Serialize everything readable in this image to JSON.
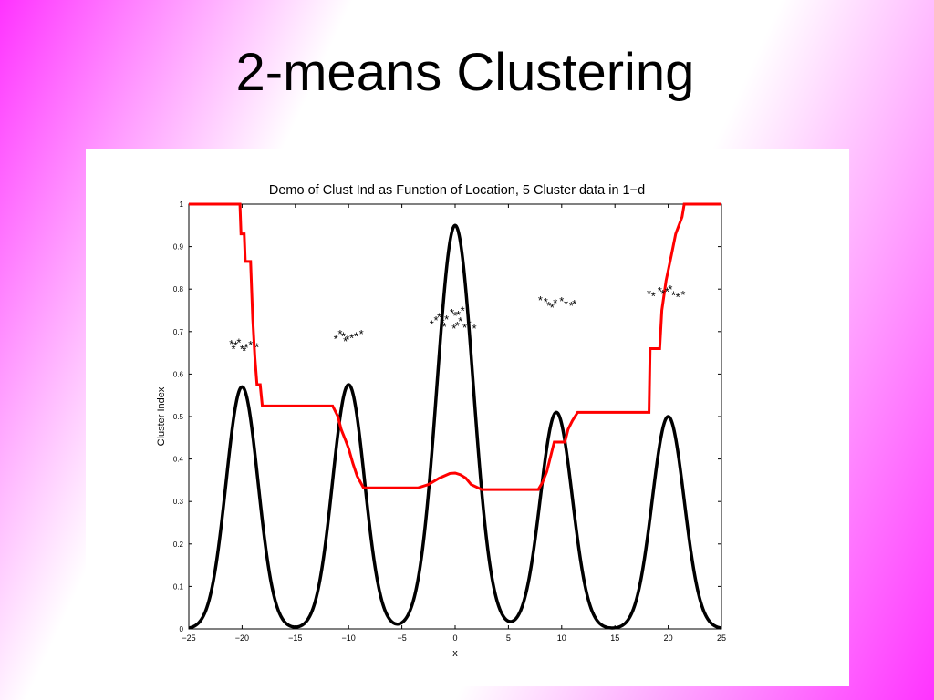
{
  "slide": {
    "title": "2-means Clustering"
  },
  "chart_data": {
    "type": "line",
    "title": "Demo of Clust Ind as Function of Location, 5 Cluster data in 1−d",
    "xlabel": "x",
    "ylabel": "Cluster Index",
    "xlim": [
      -25,
      25
    ],
    "ylim": [
      0,
      1
    ],
    "xticks": [
      -25,
      -20,
      -15,
      -10,
      -5,
      0,
      5,
      10,
      15,
      20,
      25
    ],
    "yticks": [
      0,
      0.1,
      0.2,
      0.3,
      0.4,
      0.5,
      0.6,
      0.7,
      0.8,
      0.9,
      1
    ],
    "grid": false,
    "series": [
      {
        "kind": "density",
        "color": "#000000",
        "components": [
          {
            "mean": -20,
            "sd": 1.5,
            "height": 0.57
          },
          {
            "mean": -10,
            "sd": 1.5,
            "height": 0.575
          },
          {
            "mean": 0,
            "sd": 1.7,
            "height": 0.95
          },
          {
            "mean": 9.5,
            "sd": 1.5,
            "height": 0.51
          },
          {
            "mean": 20,
            "sd": 1.5,
            "height": 0.5
          }
        ]
      },
      {
        "kind": "cluster-index",
        "color": "#ff0000",
        "points": [
          [
            -25,
            1
          ],
          [
            -20.2,
            1
          ],
          [
            -20.1,
            0.93
          ],
          [
            -19.8,
            0.93
          ],
          [
            -19.7,
            0.865
          ],
          [
            -19.2,
            0.865
          ],
          [
            -19.0,
            0.73
          ],
          [
            -18.8,
            0.64
          ],
          [
            -18.6,
            0.575
          ],
          [
            -18.3,
            0.575
          ],
          [
            -18.1,
            0.525
          ],
          [
            -11.5,
            0.525
          ],
          [
            -11.0,
            0.5
          ],
          [
            -10.7,
            0.47
          ],
          [
            -10.3,
            0.445
          ],
          [
            -10.0,
            0.425
          ],
          [
            -9.6,
            0.39
          ],
          [
            -9.2,
            0.36
          ],
          [
            -8.6,
            0.332
          ],
          [
            -3.5,
            0.332
          ],
          [
            -2.5,
            0.34
          ],
          [
            -1.5,
            0.355
          ],
          [
            -0.5,
            0.366
          ],
          [
            0,
            0.367
          ],
          [
            0.5,
            0.363
          ],
          [
            1.0,
            0.355
          ],
          [
            1.5,
            0.34
          ],
          [
            2.5,
            0.328
          ],
          [
            7.8,
            0.328
          ],
          [
            8.2,
            0.345
          ],
          [
            8.6,
            0.37
          ],
          [
            9.0,
            0.41
          ],
          [
            9.3,
            0.44
          ],
          [
            10.3,
            0.44
          ],
          [
            10.6,
            0.47
          ],
          [
            11.0,
            0.49
          ],
          [
            11.5,
            0.51
          ],
          [
            18.2,
            0.51
          ],
          [
            18.3,
            0.66
          ],
          [
            19.2,
            0.66
          ],
          [
            19.4,
            0.75
          ],
          [
            19.8,
            0.82
          ],
          [
            20.3,
            0.88
          ],
          [
            20.7,
            0.93
          ],
          [
            21.3,
            0.97
          ],
          [
            21.5,
            1
          ],
          [
            25,
            1
          ]
        ]
      },
      {
        "kind": "data-points",
        "marker": "*",
        "color": "#000000",
        "points": [
          [
            -21.0,
            0.672
          ],
          [
            -20.6,
            0.668
          ],
          [
            -20.3,
            0.675
          ],
          [
            -20.0,
            0.66
          ],
          [
            -19.6,
            0.663
          ],
          [
            -19.2,
            0.67
          ],
          [
            -18.6,
            0.664
          ],
          [
            -20.8,
            0.66
          ],
          [
            -19.8,
            0.656
          ],
          [
            -11.2,
            0.684
          ],
          [
            -10.8,
            0.695
          ],
          [
            -10.5,
            0.69
          ],
          [
            -10.1,
            0.682
          ],
          [
            -9.7,
            0.686
          ],
          [
            -9.3,
            0.69
          ],
          [
            -8.8,
            0.695
          ],
          [
            -10.3,
            0.678
          ],
          [
            -2.2,
            0.718
          ],
          [
            -1.8,
            0.728
          ],
          [
            -1.5,
            0.735
          ],
          [
            -1.2,
            0.722
          ],
          [
            -0.8,
            0.73
          ],
          [
            -0.3,
            0.745
          ],
          [
            0,
            0.738
          ],
          [
            0.3,
            0.74
          ],
          [
            0.7,
            0.75
          ],
          [
            0.2,
            0.715
          ],
          [
            -0.1,
            0.708
          ],
          [
            0.9,
            0.71
          ],
          [
            1.3,
            0.718
          ],
          [
            1.8,
            0.708
          ],
          [
            -1.0,
            0.712
          ],
          [
            0.5,
            0.725
          ],
          [
            8.0,
            0.775
          ],
          [
            8.5,
            0.77
          ],
          [
            8.8,
            0.762
          ],
          [
            9.1,
            0.758
          ],
          [
            9.4,
            0.768
          ],
          [
            10.0,
            0.772
          ],
          [
            10.4,
            0.765
          ],
          [
            10.9,
            0.762
          ],
          [
            11.2,
            0.766
          ],
          [
            18.2,
            0.79
          ],
          [
            18.6,
            0.784
          ],
          [
            19.5,
            0.79
          ],
          [
            19.9,
            0.795
          ],
          [
            20.2,
            0.8
          ],
          [
            20.5,
            0.786
          ],
          [
            20.9,
            0.782
          ],
          [
            21.4,
            0.788
          ],
          [
            19.2,
            0.796
          ]
        ]
      }
    ]
  }
}
